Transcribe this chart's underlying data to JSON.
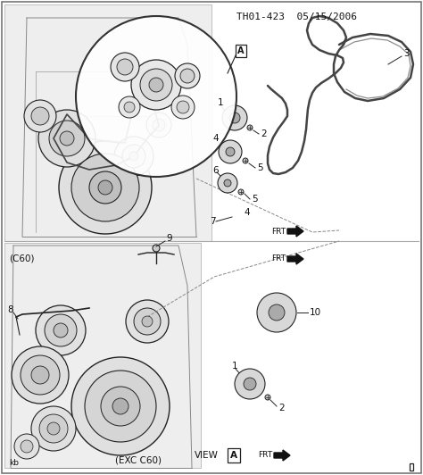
{
  "title": "TH01-423  05/15/2006",
  "bg_color": "#ffffff",
  "border_color": "#999999",
  "line_color": "#222222",
  "text_color": "#111111",
  "belt_color": "#444444",
  "engine_fill": "#f0f0f0",
  "pulley_fill": "#d8d8d8",
  "pulley_inner": "#aaaaaa",
  "fig_width": 4.74,
  "fig_height": 5.32,
  "dpi": 100,
  "labels": {
    "title": "TH01-423  05/15/2006",
    "kb": "kb",
    "c60": "(C60)",
    "exc_c60": "(EXC C60)",
    "view_a": "VIEW",
    "frt": "FRT"
  }
}
